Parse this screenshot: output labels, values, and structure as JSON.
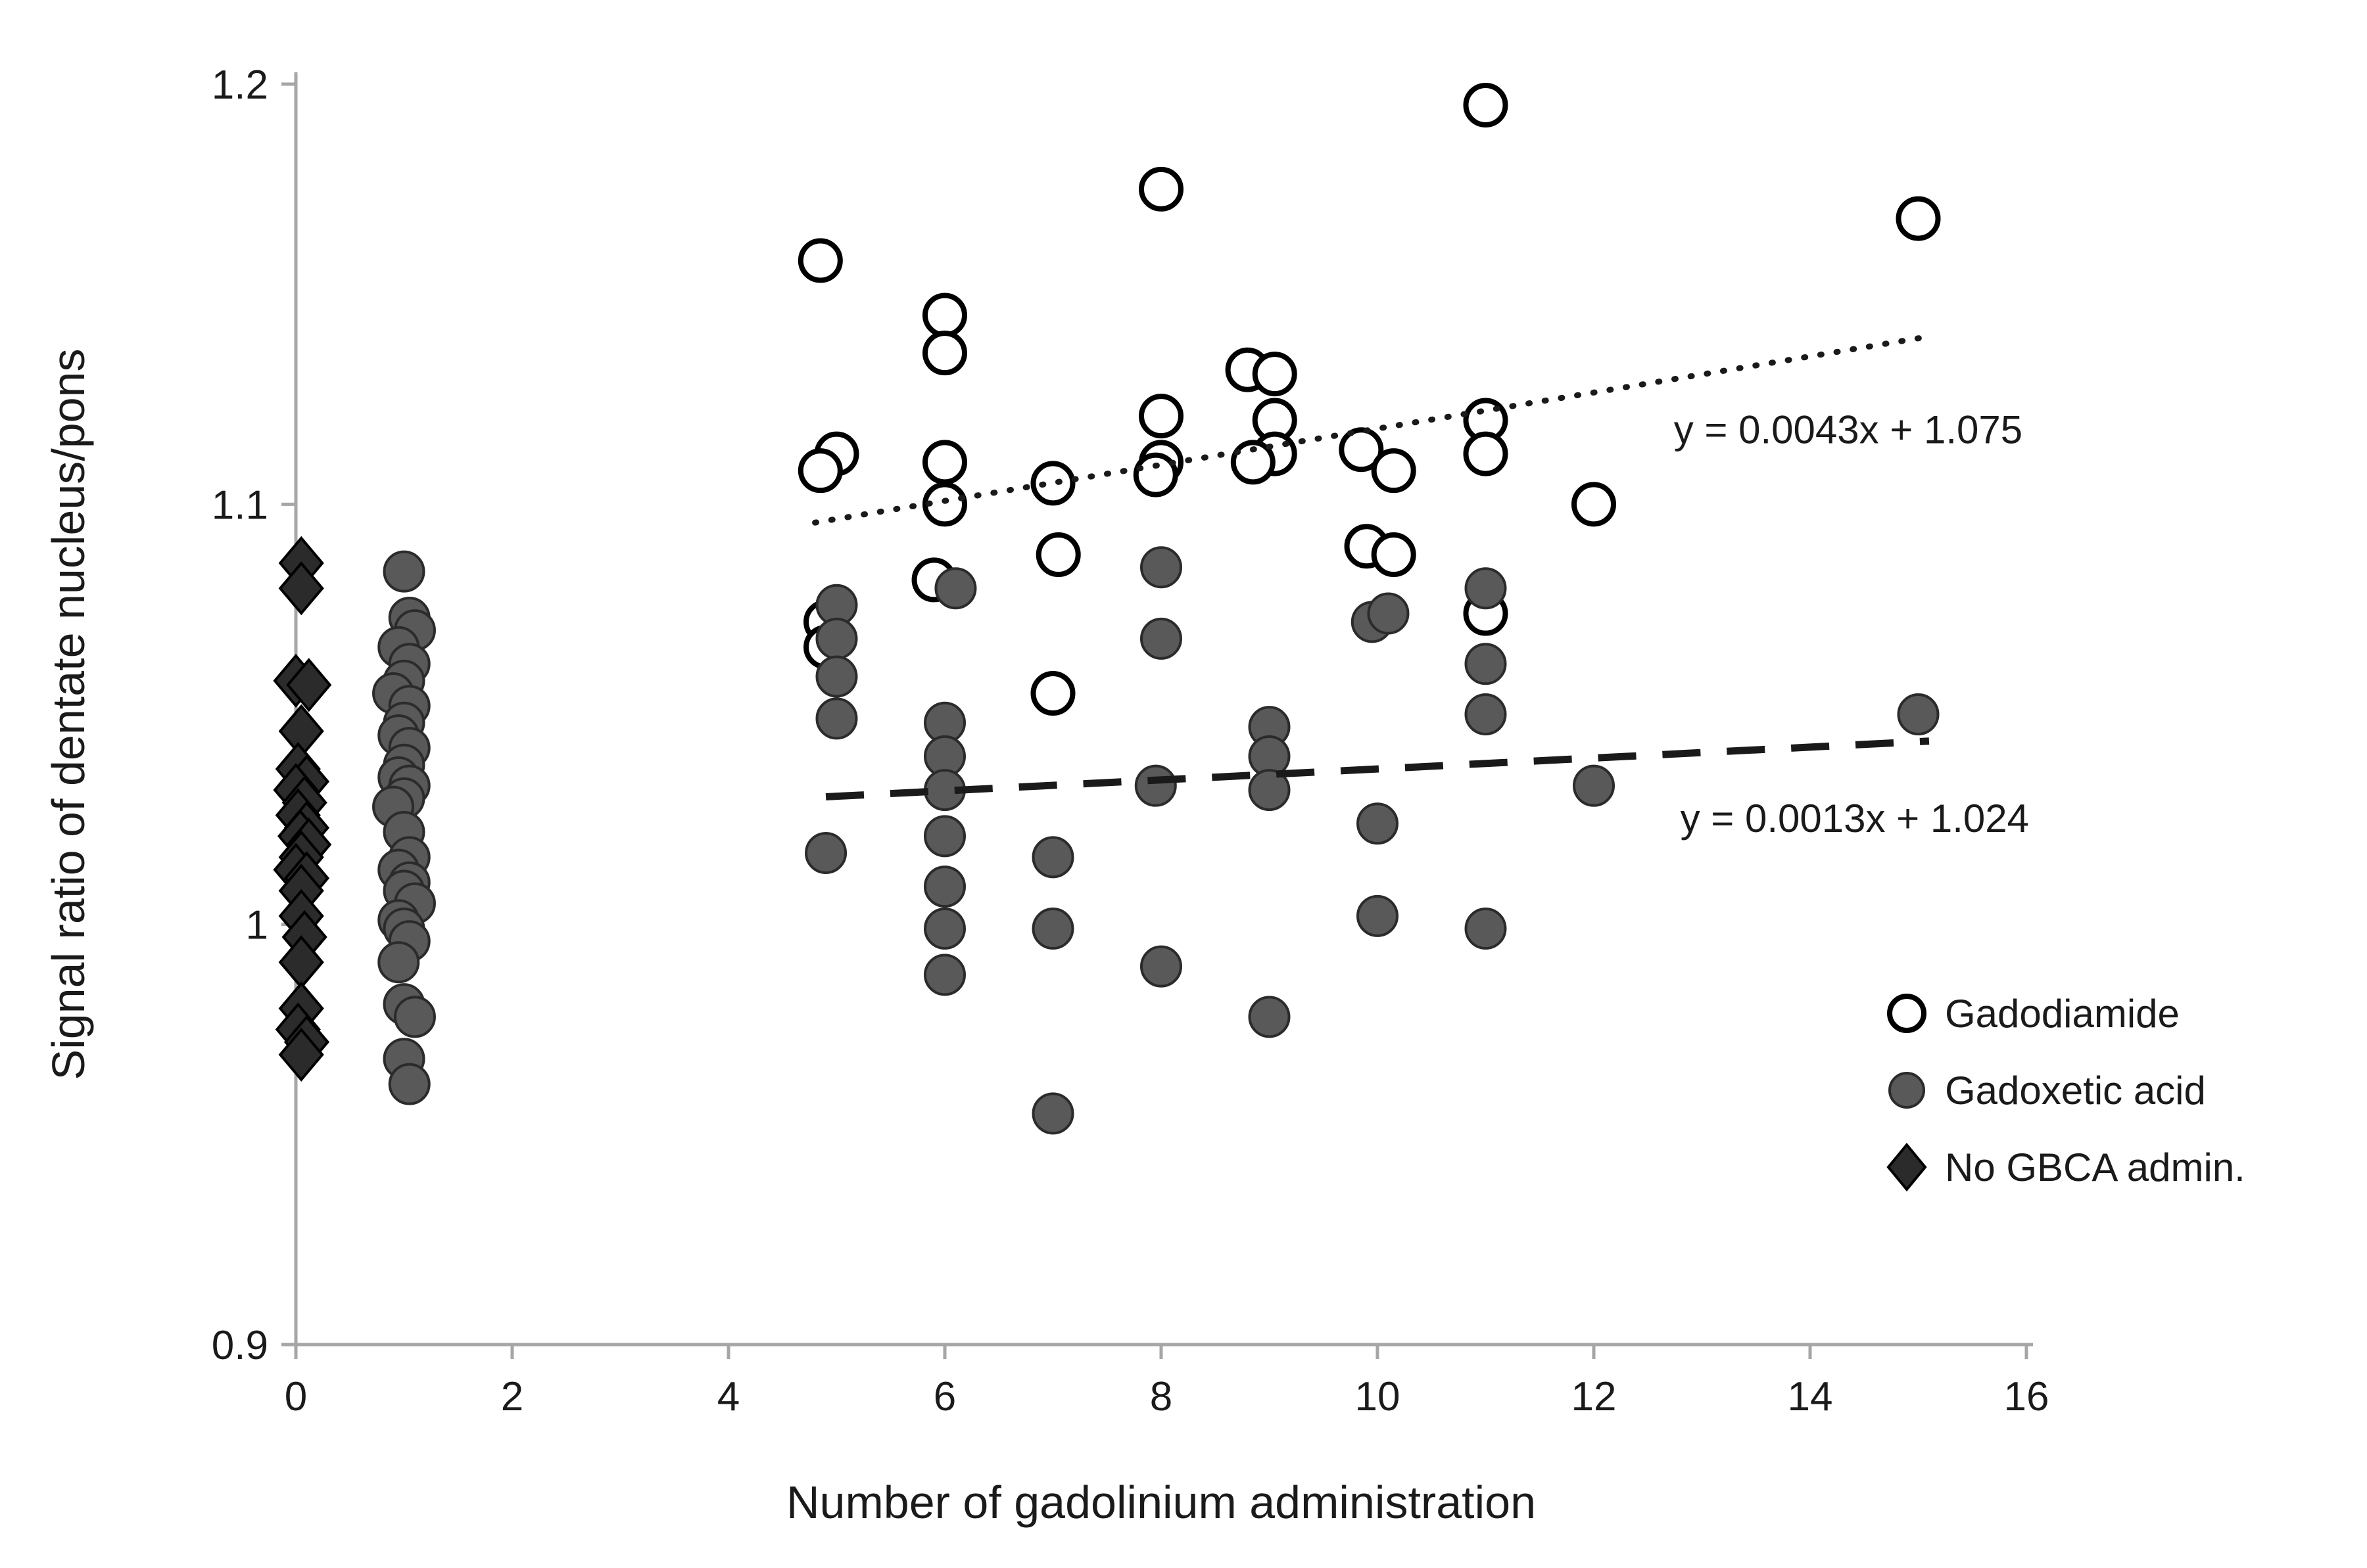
{
  "chart_data": {
    "type": "scatter",
    "title": "",
    "xlabel": "Number of gadolinium administration",
    "ylabel": "Signal ratio of dentate nucleus/pons",
    "xlim": [
      0,
      16
    ],
    "ylim": [
      0.9,
      1.2
    ],
    "xticks": [
      0,
      2,
      4,
      6,
      8,
      10,
      12,
      14,
      16
    ],
    "xtick_labels": [
      "0",
      "2",
      "4",
      "6",
      "8",
      "10",
      "12",
      "14",
      "16"
    ],
    "yticks": [
      0.9,
      1.0,
      1.1,
      1.2
    ],
    "ytick_labels": [
      "0.9",
      "1",
      "1.1",
      "1.2"
    ],
    "grid": false,
    "legend_position": "inside-bottom-right",
    "axis_color": "#a6a6a6",
    "text_color": "#1a1a1a",
    "series": [
      {
        "name": "Gadodiamide",
        "marker": "circle-open",
        "fill": "#ffffff",
        "stroke": "#000000",
        "points": [
          [
            4.85,
            1.158
          ],
          [
            5.0,
            1.112
          ],
          [
            4.85,
            1.108
          ],
          [
            4.9,
            1.072
          ],
          [
            4.9,
            1.066
          ],
          [
            6,
            1.145
          ],
          [
            6,
            1.136
          ],
          [
            6,
            1.11
          ],
          [
            6,
            1.1
          ],
          [
            5.9,
            1.082
          ],
          [
            7,
            1.105
          ],
          [
            7.05,
            1.088
          ],
          [
            7,
            1.055
          ],
          [
            8,
            1.175
          ],
          [
            8,
            1.121
          ],
          [
            8,
            1.11
          ],
          [
            7.95,
            1.107
          ],
          [
            8.8,
            1.132
          ],
          [
            9.05,
            1.131
          ],
          [
            9.05,
            1.12
          ],
          [
            9.05,
            1.112
          ],
          [
            8.85,
            1.11
          ],
          [
            9.85,
            1.113
          ],
          [
            10.15,
            1.108
          ],
          [
            9.9,
            1.09
          ],
          [
            10.15,
            1.088
          ],
          [
            11,
            1.195
          ],
          [
            11,
            1.12
          ],
          [
            11,
            1.112
          ],
          [
            11,
            1.074
          ],
          [
            12,
            1.1
          ],
          [
            15,
            1.168
          ]
        ]
      },
      {
        "name": "Gadoxetic acid",
        "marker": "circle-filled",
        "fill": "#595959",
        "stroke": "#2b2b2b",
        "points": [
          [
            1.0,
            1.084
          ],
          [
            1.05,
            1.073
          ],
          [
            1.1,
            1.07
          ],
          [
            0.95,
            1.066
          ],
          [
            1.05,
            1.062
          ],
          [
            1.0,
            1.058
          ],
          [
            0.9,
            1.055
          ],
          [
            1.05,
            1.052
          ],
          [
            1.0,
            1.048
          ],
          [
            0.95,
            1.045
          ],
          [
            1.05,
            1.042
          ],
          [
            1.0,
            1.038
          ],
          [
            0.95,
            1.035
          ],
          [
            1.05,
            1.033
          ],
          [
            1.0,
            1.03
          ],
          [
            0.9,
            1.028
          ],
          [
            1.0,
            1.022
          ],
          [
            1.05,
            1.016
          ],
          [
            0.95,
            1.013
          ],
          [
            1.05,
            1.01
          ],
          [
            1.0,
            1.008
          ],
          [
            1.1,
            1.005
          ],
          [
            0.95,
            1.001
          ],
          [
            1.0,
            0.999
          ],
          [
            1.05,
            0.996
          ],
          [
            0.95,
            0.991
          ],
          [
            1.0,
            0.981
          ],
          [
            1.1,
            0.978
          ],
          [
            1.0,
            0.968
          ],
          [
            1.05,
            0.962
          ],
          [
            5,
            1.076
          ],
          [
            5,
            1.068
          ],
          [
            5,
            1.059
          ],
          [
            5,
            1.049
          ],
          [
            4.9,
            1.017
          ],
          [
            6.1,
            1.08
          ],
          [
            6,
            1.048
          ],
          [
            6,
            1.04
          ],
          [
            6,
            1.032
          ],
          [
            6,
            1.021
          ],
          [
            6,
            1.009
          ],
          [
            6,
            0.999
          ],
          [
            6,
            0.988
          ],
          [
            7,
            1.016
          ],
          [
            7,
            0.999
          ],
          [
            7,
            0.955
          ],
          [
            8,
            1.085
          ],
          [
            8,
            1.068
          ],
          [
            7.95,
            1.033
          ],
          [
            8,
            0.99
          ],
          [
            9,
            1.047
          ],
          [
            9,
            1.04
          ],
          [
            9,
            1.032
          ],
          [
            9,
            0.978
          ],
          [
            9.95,
            1.072
          ],
          [
            10.1,
            1.074
          ],
          [
            10,
            1.024
          ],
          [
            10,
            1.002
          ],
          [
            11,
            1.08
          ],
          [
            11,
            1.062
          ],
          [
            11,
            1.05
          ],
          [
            11,
            0.999
          ],
          [
            12,
            1.033
          ],
          [
            15,
            1.05
          ]
        ]
      },
      {
        "name": "No GBCA admin.",
        "marker": "diamond-filled",
        "fill": "#2b2b2b",
        "stroke": "#000000",
        "points": [
          [
            0.05,
            1.086
          ],
          [
            0.05,
            1.08
          ],
          [
            0.0,
            1.058
          ],
          [
            0.12,
            1.057
          ],
          [
            0.05,
            1.046
          ],
          [
            0.02,
            1.037
          ],
          [
            0.1,
            1.034
          ],
          [
            0.0,
            1.032
          ],
          [
            0.08,
            1.029
          ],
          [
            0.02,
            1.026
          ],
          [
            0.1,
            1.023
          ],
          [
            0.04,
            1.021
          ],
          [
            0.12,
            1.019
          ],
          [
            0.05,
            1.016
          ],
          [
            0.0,
            1.013
          ],
          [
            0.1,
            1.011
          ],
          [
            0.05,
            1.008
          ],
          [
            0.05,
            1.002
          ],
          [
            0.08,
            0.997
          ],
          [
            0.05,
            0.991
          ],
          [
            0.05,
            0.98
          ],
          [
            0.02,
            0.975
          ],
          [
            0.1,
            0.972
          ],
          [
            0.05,
            0.969
          ]
        ]
      }
    ],
    "trendlines": [
      {
        "label": "y = 0.0043x + 1.075",
        "slope": 0.0043,
        "intercept": 1.075,
        "x_start": 4.8,
        "x_end": 15.1,
        "style": "dotted",
        "color": "#1a1a1a",
        "label_pos": [
          12.74,
          1.117
        ]
      },
      {
        "label": "y = 0.0013x + 1.024",
        "slope": 0.0013,
        "intercept": 1.024,
        "x_start": 4.9,
        "x_end": 15.1,
        "style": "dashed",
        "color": "#1a1a1a",
        "label_pos": [
          12.8,
          1.0245
        ]
      }
    ]
  }
}
